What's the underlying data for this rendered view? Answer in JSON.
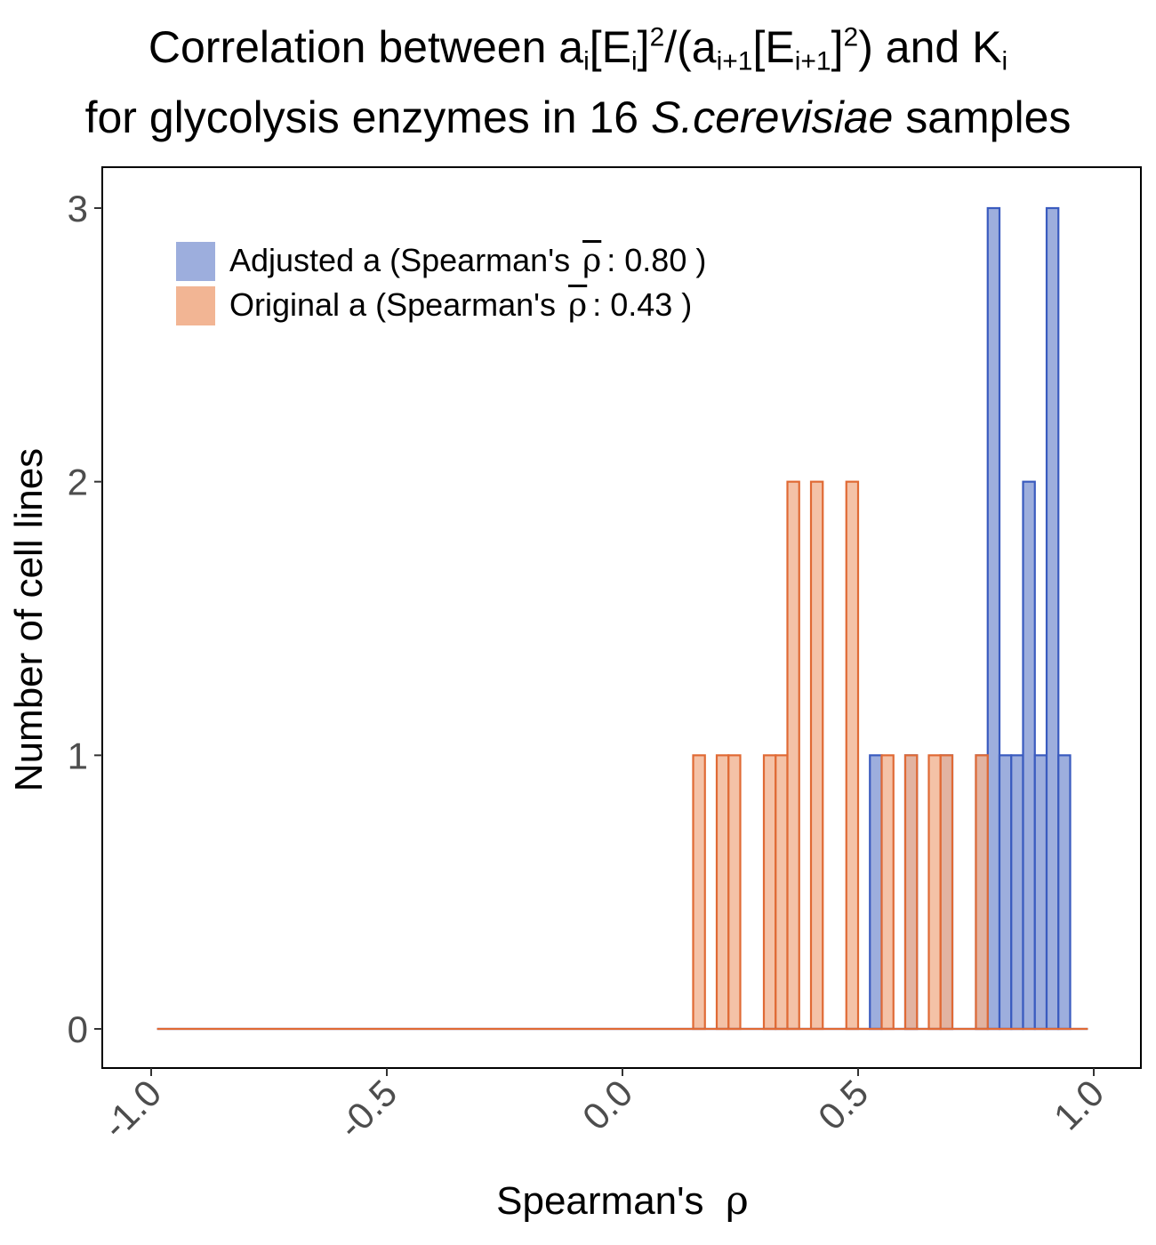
{
  "title": {
    "line1": {
      "prefix": "Correlation between a",
      "sub1": "i",
      "mid1": "[E",
      "sub2": "i",
      "mid2": "]",
      "sup1": "2",
      "mid3": "/(a",
      "sub3": "i+1",
      "mid4": "[E",
      "sub4": "i+1",
      "mid5": "]",
      "sup2": "2",
      "mid6": ") and K",
      "sub5": "i"
    },
    "line2": {
      "prefix": "for glycolysis enzymes in 16 ",
      "italic": "S.cerevisiae",
      "suffix": " samples"
    }
  },
  "chart_data": {
    "type": "bar",
    "subtype": "histogram (overlaid)",
    "xlabel_text": "Spearman's",
    "xlabel_symbol": "ρ",
    "ylabel": "Number of cell lines",
    "xlim": [
      -1.0,
      1.0
    ],
    "ylim": [
      0,
      3
    ],
    "x_ticks": [
      "-1.0",
      "-0.5",
      "0.0",
      "0.5",
      "1.0"
    ],
    "x_tick_values": [
      -1.0,
      -0.5,
      0.0,
      0.5,
      1.0
    ],
    "y_ticks": [
      "0",
      "1",
      "2",
      "3"
    ],
    "y_tick_values": [
      0,
      1,
      2,
      3
    ],
    "bin_width": 0.025,
    "grid": false,
    "legend_position": "top-left",
    "series": [
      {
        "name": "Adjusted a",
        "legend_prefix": "Adjusted a (Spearman's",
        "legend_mean_symbol": "ρ",
        "legend_mean_value": ": 0.80 )",
        "fill": "#9daedd",
        "stroke": "#3a5bbf",
        "bins": [
          {
            "x": 0.5375,
            "count": 1
          },
          {
            "x": 0.6125,
            "count": 1
          },
          {
            "x": 0.6875,
            "count": 1
          },
          {
            "x": 0.7625,
            "count": 1
          },
          {
            "x": 0.7875,
            "count": 3
          },
          {
            "x": 0.8125,
            "count": 1
          },
          {
            "x": 0.8375,
            "count": 1
          },
          {
            "x": 0.8625,
            "count": 2
          },
          {
            "x": 0.8875,
            "count": 1
          },
          {
            "x": 0.9125,
            "count": 3
          },
          {
            "x": 0.9375,
            "count": 1
          }
        ]
      },
      {
        "name": "Original a",
        "legend_prefix": "Original a (Spearman's",
        "legend_mean_symbol": "ρ",
        "legend_mean_value": ": 0.43 )",
        "fill": "#f2b594",
        "stroke": "#e06a35",
        "bins": [
          {
            "x": 0.1625,
            "count": 1
          },
          {
            "x": 0.2125,
            "count": 1
          },
          {
            "x": 0.2375,
            "count": 1
          },
          {
            "x": 0.3125,
            "count": 1
          },
          {
            "x": 0.3375,
            "count": 1
          },
          {
            "x": 0.3625,
            "count": 2
          },
          {
            "x": 0.4125,
            "count": 2
          },
          {
            "x": 0.4875,
            "count": 2
          },
          {
            "x": 0.5625,
            "count": 1
          },
          {
            "x": 0.6125,
            "count": 1
          },
          {
            "x": 0.6625,
            "count": 1
          },
          {
            "x": 0.6875,
            "count": 1
          },
          {
            "x": 0.7625,
            "count": 1
          }
        ]
      }
    ]
  }
}
